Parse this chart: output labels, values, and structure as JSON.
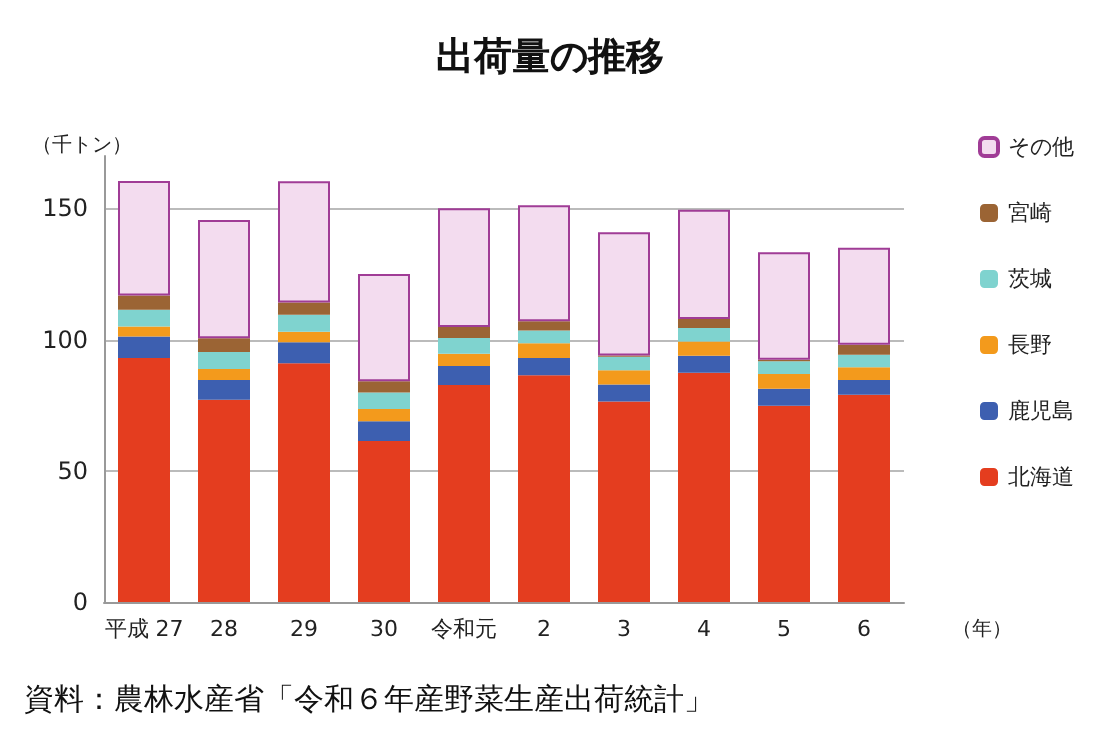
{
  "chart_data": {
    "type": "bar",
    "title": "出荷量の推移",
    "ylabel": "（千トン）",
    "xlabel": "（年）",
    "annotations": [
      "資料：農林水産省「令和６年産野菜生産出荷統計」"
    ],
    "categories": [
      "平成 27",
      "28",
      "29",
      "30",
      "令和元",
      "2",
      "3",
      "4",
      "5",
      "6"
    ],
    "stacked": true,
    "ylim": [
      0,
      170
    ],
    "yticks": [
      0,
      50,
      100,
      150
    ],
    "grid": "y",
    "legend": "right",
    "series": [
      {
        "name": "北海道",
        "color": "#e43d1f",
        "values": [
          93,
          77.1,
          91,
          61.4,
          82.7,
          86.4,
          76.4,
          87.4,
          74.8,
          79
        ]
      },
      {
        "name": "鹿児島",
        "color": "#3d5fb0",
        "values": [
          8.2,
          7.5,
          8,
          7.5,
          7.3,
          6.6,
          6.5,
          6.5,
          6.5,
          5.6
        ]
      },
      {
        "name": "長野",
        "color": "#f39a1c",
        "values": [
          3.8,
          4.2,
          4,
          4.7,
          4.6,
          5.6,
          5.4,
          5.4,
          5.6,
          4.9
        ]
      },
      {
        "name": "茨城",
        "color": "#7fd3cf",
        "values": [
          6.4,
          6.5,
          6.5,
          6.3,
          6,
          4.9,
          5.2,
          5.1,
          4.9,
          4.7
        ]
      },
      {
        "name": "宮崎",
        "color": "#9b6434",
        "values": [
          5.4,
          5.2,
          4.7,
          4.2,
          4.2,
          3.5,
          0.5,
          3.5,
          0.5,
          3.9
        ]
      },
      {
        "name": "その他",
        "color": "#f3dcef",
        "values": [
          43.7,
          45.1,
          46.2,
          40.9,
          45.3,
          44.2,
          46.9,
          41.6,
          41,
          36.9
        ]
      }
    ]
  }
}
